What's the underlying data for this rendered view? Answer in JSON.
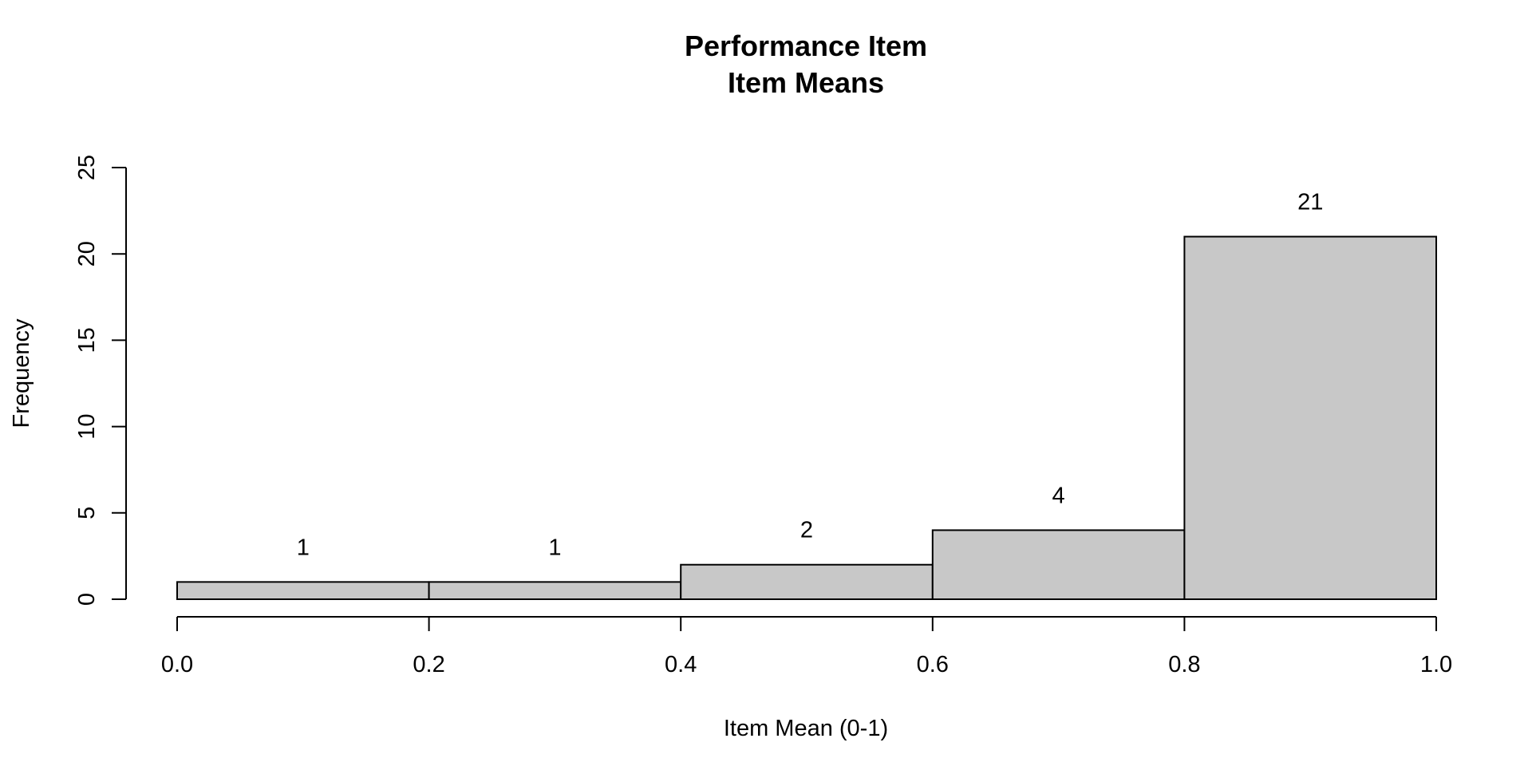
{
  "chart_data": {
    "type": "bar",
    "title": "Performance Item",
    "subtitle": "Item Means",
    "xlabel": "Item Mean (0-1)",
    "ylabel": "Frequency",
    "bins": [
      {
        "x0": 0.0,
        "x1": 0.2,
        "count": 1,
        "label": "1"
      },
      {
        "x0": 0.2,
        "x1": 0.4,
        "count": 1,
        "label": "1"
      },
      {
        "x0": 0.4,
        "x1": 0.6,
        "count": 2,
        "label": "2"
      },
      {
        "x0": 0.6,
        "x1": 0.8,
        "count": 4,
        "label": "4"
      },
      {
        "x0": 0.8,
        "x1": 1.0,
        "count": 21,
        "label": "21"
      }
    ],
    "xlim": [
      0.0,
      1.0
    ],
    "ylim": [
      0,
      25
    ],
    "x_ticks": [
      {
        "value": 0.0,
        "label": "0.0"
      },
      {
        "value": 0.2,
        "label": "0.2"
      },
      {
        "value": 0.4,
        "label": "0.4"
      },
      {
        "value": 0.6,
        "label": "0.6"
      },
      {
        "value": 0.8,
        "label": "0.8"
      },
      {
        "value": 1.0,
        "label": "1.0"
      }
    ],
    "y_ticks": [
      {
        "value": 0,
        "label": "0"
      },
      {
        "value": 5,
        "label": "5"
      },
      {
        "value": 10,
        "label": "10"
      },
      {
        "value": 15,
        "label": "15"
      },
      {
        "value": 20,
        "label": "20"
      },
      {
        "value": 25,
        "label": "25"
      }
    ],
    "grid": false,
    "legend": "none",
    "colors": {
      "bar_fill": "#c8c8c8",
      "bar_stroke": "#000000",
      "axis": "#000000"
    }
  }
}
